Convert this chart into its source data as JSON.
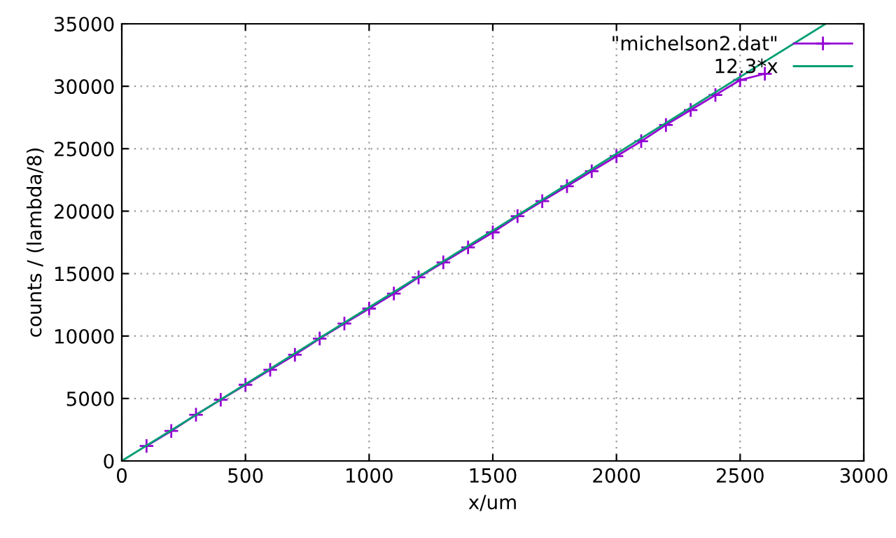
{
  "chart_data": {
    "type": "line",
    "xlabel": "x/um",
    "ylabel": "counts / (lambda/8)",
    "xlim": [
      0,
      3000
    ],
    "xticks": [
      0,
      500,
      1000,
      1500,
      2000,
      2500,
      3000
    ],
    "ylim": [
      0,
      35000
    ],
    "yticks": [
      0,
      5000,
      10000,
      15000,
      20000,
      25000,
      30000,
      35000
    ],
    "grid": true,
    "legend": "top right",
    "series": [
      {
        "name": "\"michelson2.dat\"",
        "color": "#9400d3",
        "marker": "cross",
        "x": [
          100,
          200,
          300,
          400,
          500,
          600,
          700,
          800,
          900,
          1000,
          1100,
          1200,
          1300,
          1400,
          1500,
          1600,
          1700,
          1800,
          1900,
          2000,
          2100,
          2200,
          2300,
          2400,
          2500,
          2600
        ],
        "values": [
          1200,
          2400,
          3700,
          4900,
          6100,
          7300,
          8500,
          9800,
          11000,
          12200,
          13400,
          14700,
          15900,
          17100,
          18300,
          19600,
          20800,
          22000,
          23200,
          24400,
          25600,
          26900,
          28100,
          29300,
          30500,
          31000
        ]
      },
      {
        "name": "12.3*x",
        "color": "#009e73",
        "marker": "none",
        "x": [
          0,
          2845.5
        ],
        "values": [
          0,
          35000
        ]
      }
    ]
  }
}
